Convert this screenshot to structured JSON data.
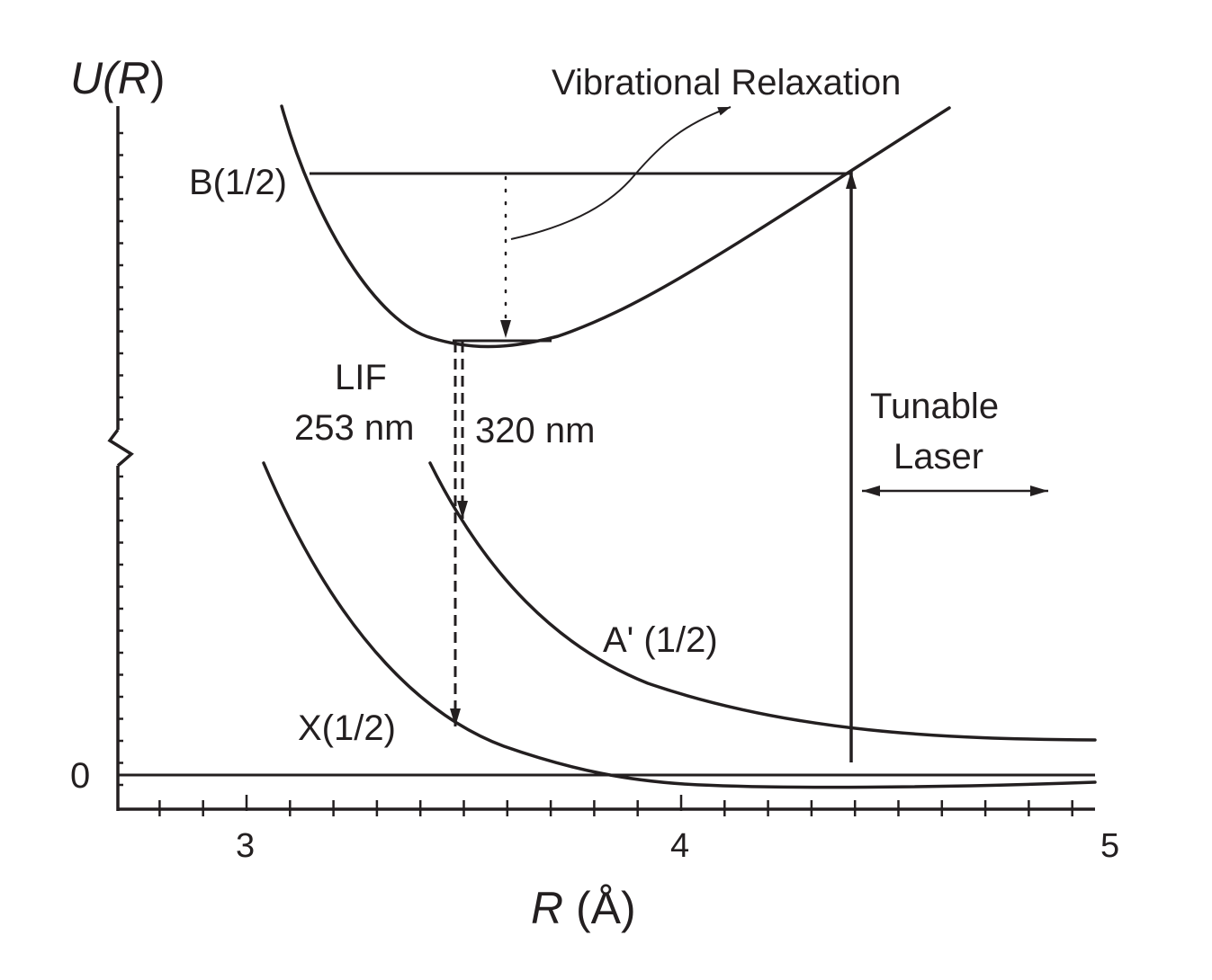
{
  "axes": {
    "y_label_prefix": "U(",
    "y_label_var": "R",
    "y_label_suffix": ")",
    "x_label_var": "R",
    "x_label_unit": " (Å)",
    "zero_label": "0",
    "x_ticks": [
      "3",
      "4",
      "5"
    ]
  },
  "states": {
    "b": "B(1/2)",
    "a_prime": "A' (1/2)",
    "x": "X(1/2)"
  },
  "annotations": {
    "vibrational_relaxation": "Vibrational Relaxation",
    "lif": "LIF",
    "lif_253": "253 nm",
    "lif_320": "320 nm",
    "tunable": "Tunable",
    "laser": "Laser"
  },
  "colors": {
    "ink": "#231f20"
  }
}
